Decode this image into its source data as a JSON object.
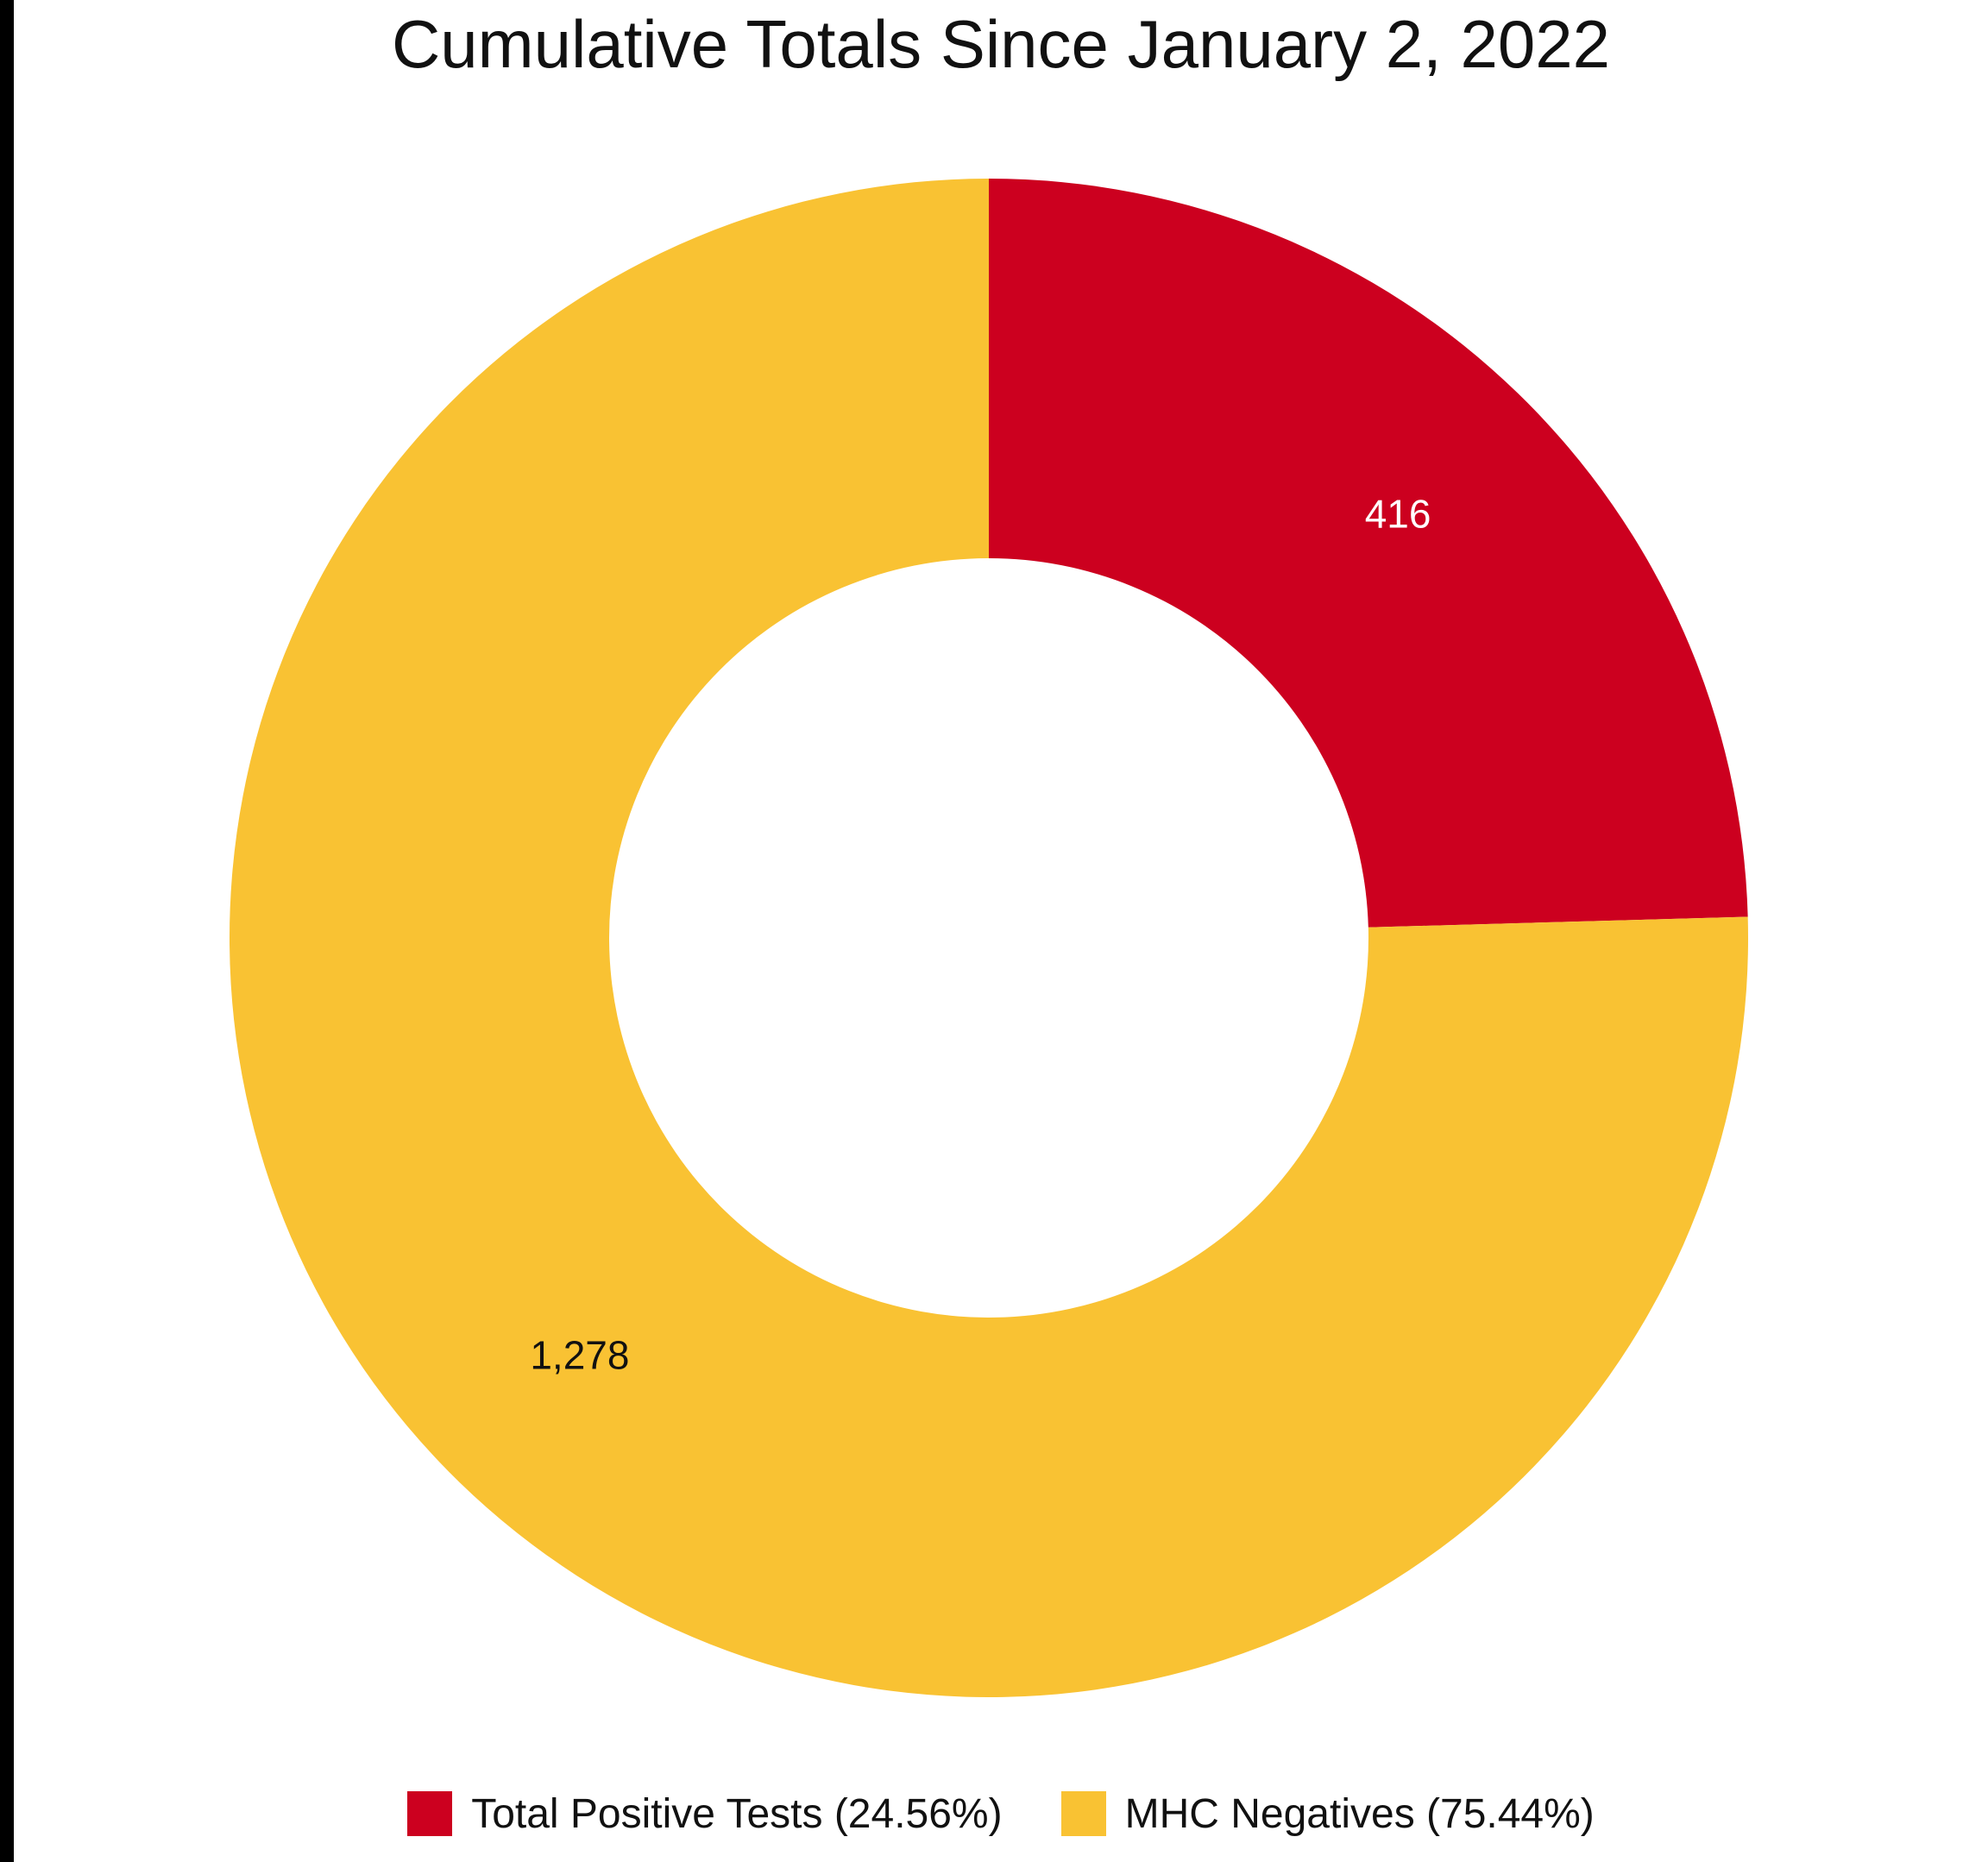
{
  "chart_data": {
    "type": "pie",
    "donut": true,
    "title": "Cumulative Totals Since January 2, 2022",
    "slices": [
      {
        "label": "Total Positive Tests (24.56%)",
        "value": 416,
        "data_label": "416",
        "color": "#cc001f",
        "label_color": "#ffffff"
      },
      {
        "label": "MHC Negatives (75.44%)",
        "value": 1278,
        "data_label": "1,278",
        "color": "#f9c233",
        "label_color": "#111111"
      }
    ],
    "legend_position": "bottom"
  }
}
